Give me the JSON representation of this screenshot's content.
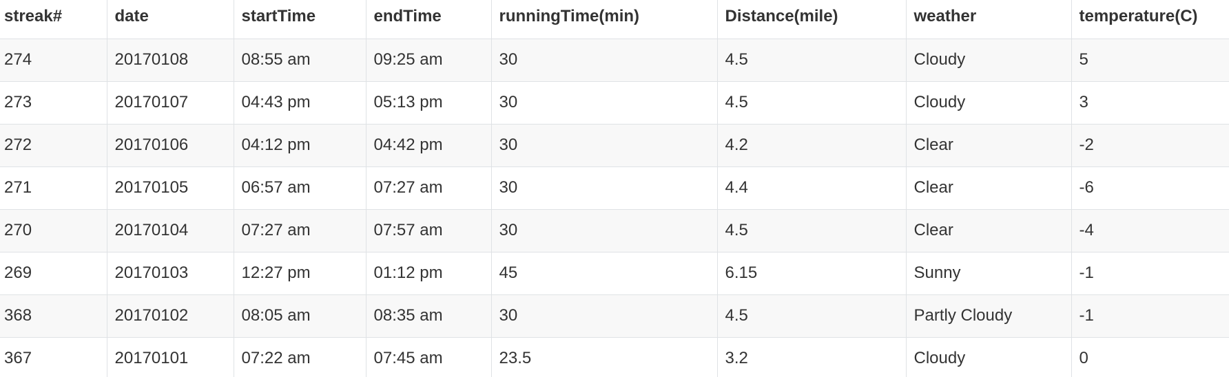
{
  "table": {
    "headers": [
      "streak#",
      "date",
      "startTime",
      "endTime",
      "runningTime(min)",
      "Distance(mile)",
      "weather",
      "temperature(C)"
    ],
    "rows": [
      [
        "274",
        "20170108",
        "08:55 am",
        "09:25 am",
        "30",
        "4.5",
        "Cloudy",
        "5"
      ],
      [
        "273",
        "20170107",
        "04:43 pm",
        "05:13 pm",
        "30",
        "4.5",
        "Cloudy",
        "3"
      ],
      [
        "272",
        "20170106",
        "04:12 pm",
        "04:42 pm",
        "30",
        "4.2",
        "Clear",
        "-2"
      ],
      [
        "271",
        "20170105",
        "06:57 am",
        "07:27 am",
        "30",
        "4.4",
        "Clear",
        "-6"
      ],
      [
        "270",
        "20170104",
        "07:27 am",
        "07:57 am",
        "30",
        "4.5",
        "Clear",
        "-4"
      ],
      [
        "269",
        "20170103",
        "12:27 pm",
        "01:12 pm",
        "45",
        "6.15",
        "Sunny",
        "-1"
      ],
      [
        "368",
        "20170102",
        "08:05 am",
        "08:35 am",
        "30",
        "4.5",
        "Partly Cloudy",
        "-1"
      ],
      [
        "367",
        "20170101",
        "07:22 am",
        "07:45 am",
        "23.5",
        "3.2",
        "Cloudy",
        "0"
      ]
    ]
  },
  "colors": {
    "border": "#dfe2e5",
    "stripe": "#f8f8f8",
    "text": "#333333"
  }
}
